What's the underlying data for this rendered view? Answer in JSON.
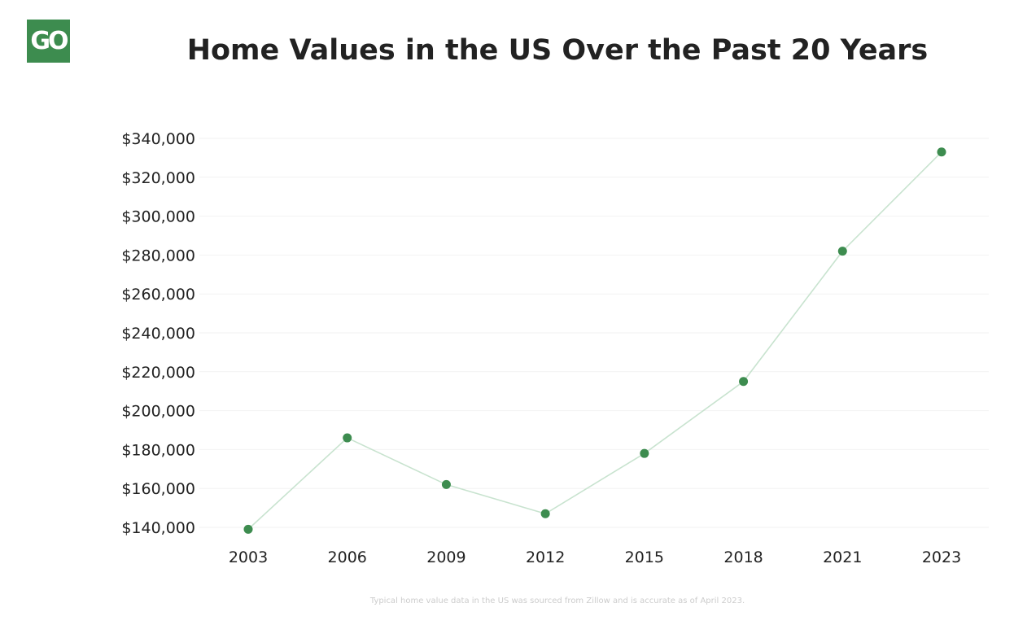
{
  "logo": {
    "text": "GO"
  },
  "colors": {
    "brand": "#3d8c4f",
    "series_marker": "#3d8c4f",
    "series_line": "#c8e3cf",
    "grid": "#f2f2f2",
    "text": "#222222",
    "footnote": "#cccccc"
  },
  "footnote": "Typical home value data in the US was sourced from Zillow and is accurate as of April 2023.",
  "chart_data": {
    "type": "line",
    "title": "Home Values in the US Over the Past 20 Years",
    "xlabel": "",
    "ylabel": "",
    "categories": [
      "2003",
      "2006",
      "2009",
      "2012",
      "2015",
      "2018",
      "2021",
      "2023"
    ],
    "series": [
      {
        "values": [
          139000,
          186000,
          162000,
          147000,
          178000,
          215000,
          282000,
          333000
        ]
      }
    ],
    "ylim": [
      140000,
      340000
    ],
    "ytick_values": [
      140000,
      160000,
      180000,
      200000,
      220000,
      240000,
      260000,
      280000,
      300000,
      320000,
      340000
    ],
    "ytick_labels": [
      "$140,000",
      "$160,000",
      "$180,000",
      "$200,000",
      "$220,000",
      "$240,000",
      "$260,000",
      "$280,000",
      "$300,000",
      "$320,000",
      "$340,000"
    ],
    "grid": true,
    "legend": "none"
  }
}
